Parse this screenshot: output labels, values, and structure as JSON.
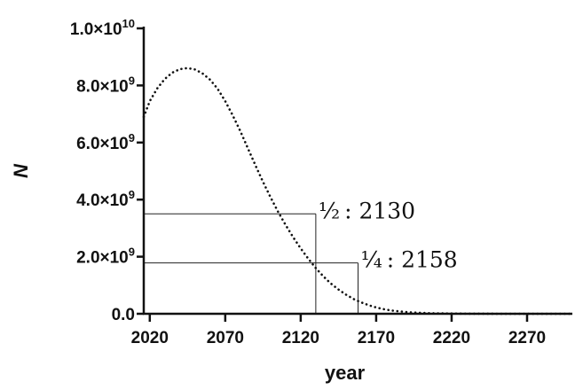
{
  "chart_data": {
    "type": "line",
    "title": "",
    "xlabel": "year",
    "ylabel": "N",
    "xlim": [
      2016,
      2300
    ],
    "ylim": [
      0,
      10000000000
    ],
    "grid": false,
    "x_ticks": [
      2020,
      2070,
      2120,
      2170,
      2220,
      2270
    ],
    "x_tick_labels": [
      "2020",
      "2070",
      "2120",
      "2170",
      "2220",
      "2270"
    ],
    "y_ticks": [
      {
        "value": 0,
        "mantissa": "0.0",
        "exp": ""
      },
      {
        "value": 2000000000,
        "mantissa": "2.0×10",
        "exp": "9"
      },
      {
        "value": 4000000000,
        "mantissa": "4.0×10",
        "exp": "9"
      },
      {
        "value": 6000000000,
        "mantissa": "6.0×10",
        "exp": "9"
      },
      {
        "value": 8000000000,
        "mantissa": "8.0×10",
        "exp": "9"
      },
      {
        "value": 10000000000,
        "mantissa": "1.0×10",
        "exp": "10"
      }
    ],
    "series": [
      {
        "line_style": "dotted",
        "color": "#111111",
        "x": [
          2016,
          2020,
          2025,
          2030,
          2035,
          2040,
          2045,
          2050,
          2055,
          2060,
          2065,
          2070,
          2075,
          2080,
          2085,
          2090,
          2095,
          2100,
          2105,
          2110,
          2115,
          2120,
          2125,
          2130,
          2135,
          2140,
          2145,
          2150,
          2155,
          2160,
          2165,
          2170,
          2175,
          2180,
          2190,
          2200,
          2210,
          2220,
          2230,
          2240,
          2250,
          2260,
          2270,
          2280,
          2290,
          2300
        ],
        "y": [
          6900000000,
          7450000000,
          7900000000,
          8230000000,
          8450000000,
          8570000000,
          8610000000,
          8560000000,
          8420000000,
          8200000000,
          7880000000,
          7450000000,
          6950000000,
          6400000000,
          5800000000,
          5200000000,
          4620000000,
          4080000000,
          3570000000,
          3110000000,
          2680000000,
          2290000000,
          1930000000,
          1600000000,
          1310000000,
          1060000000,
          850000000,
          670000000,
          520000000,
          400000000,
          300000000,
          220000000,
          160000000,
          115000000,
          60000000,
          30000000,
          15000000,
          8000000,
          4000000,
          2000000,
          1000000,
          500000,
          300000,
          150000,
          80000,
          40000
        ]
      }
    ],
    "annotations": [
      {
        "label": "½ : 2130",
        "x": 2130,
        "y": 3500000000
      },
      {
        "label": "¼ : 2158",
        "x": 2158,
        "y": 1780000000
      }
    ]
  }
}
